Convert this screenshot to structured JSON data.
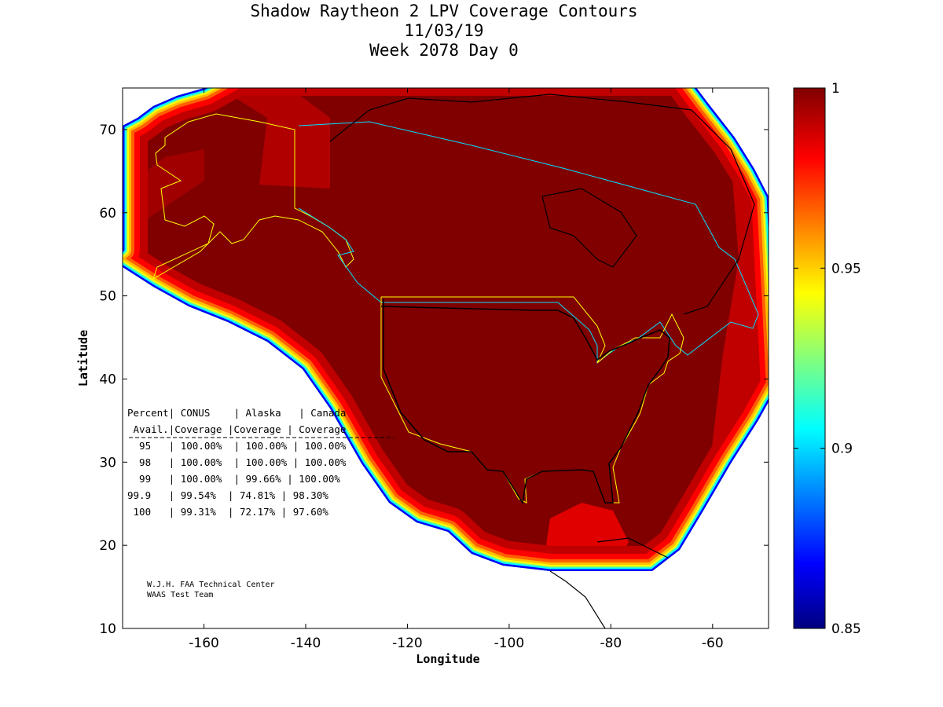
{
  "chart_data": {
    "type": "heatmap",
    "title": [
      "Shadow Raytheon 2 LPV Coverage Contours",
      "11/03/19",
      "Week 2078 Day 0"
    ],
    "xlabel": "Longitude",
    "ylabel": "Latitude",
    "xlim": [
      -176,
      -49
    ],
    "ylim": [
      10,
      75
    ],
    "xticks": [
      -160,
      -140,
      -120,
      -100,
      -80,
      -60
    ],
    "yticks": [
      10,
      20,
      30,
      40,
      50,
      60,
      70
    ],
    "colorbar": {
      "range": [
        0.85,
        1
      ],
      "ticks": [
        "1",
        "0.95",
        "0.9",
        "0.85"
      ],
      "colormap": "jet"
    },
    "table": {
      "header1": "Percent| CONUS    | Alaska   | Canada",
      "header2": " Avail.|Coverage |Coverage | Coverage",
      "columns": [
        "Percent Avail.",
        "CONUS Coverage",
        "Alaska Coverage",
        "Canada Coverage"
      ],
      "rows": [
        [
          "95",
          "100.00%",
          "100.00%",
          "100.00%"
        ],
        [
          "98",
          "100.00%",
          "100.00%",
          "100.00%"
        ],
        [
          "99",
          "100.00%",
          "99.66%",
          "100.00%"
        ],
        [
          "99.9",
          "99.54%",
          "74.81%",
          "98.30%"
        ],
        [
          "100",
          "99.31%",
          "72.17%",
          "97.60%"
        ]
      ],
      "lines": [
        "  95   | 100.00%  | 100.00% | 100.00%",
        "  98   | 100.00%  | 100.00% | 100.00%",
        "  99   | 100.00%  | 99.66% | 100.00%",
        "99.9   | 99.54%  | 74.81% | 98.30%",
        " 100   | 99.31%  | 72.17% | 97.60%"
      ]
    },
    "credit": [
      "W.J.H. FAA Technical Center",
      "WAAS Test Team"
    ]
  },
  "colors": {
    "max": "#800000",
    "red": "#ff0000",
    "orange": "#ff8000",
    "yellow": "#ffff00",
    "cyan": "#00ffff",
    "blue": "#0000ff",
    "min": "#000080"
  }
}
